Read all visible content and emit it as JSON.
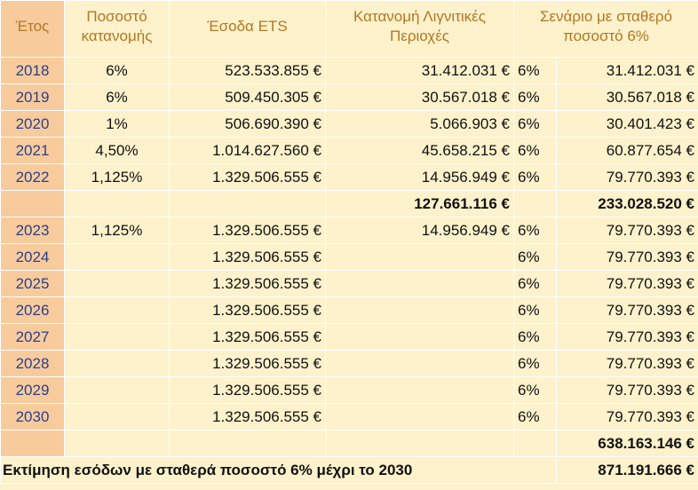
{
  "header": {
    "year": "Έτος",
    "allocation_pct": "Ποσοστό κατανομής",
    "ets_revenue": "Έσοδα ETS",
    "lignite_allocation": "Κατανομή Λιγνιτικές Περιοχές",
    "scenario": "Σενάριο με σταθερό ποσοστό 6%"
  },
  "rows": [
    {
      "year": "2018",
      "pct": "6%",
      "ets": "523.533.855 €",
      "lignite": "31.412.031 €",
      "scen_pct": "6%",
      "scen": "31.412.031 €"
    },
    {
      "year": "2019",
      "pct": "6%",
      "ets": "509.450.305 €",
      "lignite": "30.567.018 €",
      "scen_pct": "6%",
      "scen": "30.567.018 €"
    },
    {
      "year": "2020",
      "pct": "1%",
      "ets": "506.690.390 €",
      "lignite": "5.066.903 €",
      "scen_pct": "6%",
      "scen": "30.401.423 €"
    },
    {
      "year": "2021",
      "pct": "4,50%",
      "ets": "1.014.627.560 €",
      "lignite": "45.658.215 €",
      "scen_pct": "6%",
      "scen": "60.877.654 €"
    },
    {
      "year": "2022",
      "pct": "1,125%",
      "ets": "1.329.506.555 €",
      "lignite": "14.956.949 €",
      "scen_pct": "6%",
      "scen": "79.770.393 €"
    },
    {
      "year": "",
      "pct": "",
      "ets": "",
      "lignite": "127.661.116 €",
      "scen_pct": "",
      "scen": "233.028.520 €",
      "subtotal": true
    },
    {
      "year": "2023",
      "pct": "1,125%",
      "ets": "1.329.506.555 €",
      "lignite": "14.956.949 €",
      "scen_pct": "6%",
      "scen": "79.770.393 €"
    },
    {
      "year": "2024",
      "pct": "",
      "ets": "1.329.506.555 €",
      "lignite": "",
      "scen_pct": "6%",
      "scen": "79.770.393 €"
    },
    {
      "year": "2025",
      "pct": "",
      "ets": "1.329.506.555 €",
      "lignite": "",
      "scen_pct": "6%",
      "scen": "79.770.393 €"
    },
    {
      "year": "2026",
      "pct": "",
      "ets": "1.329.506.555 €",
      "lignite": "",
      "scen_pct": "6%",
      "scen": "79.770.393 €"
    },
    {
      "year": "2027",
      "pct": "",
      "ets": "1.329.506.555 €",
      "lignite": "",
      "scen_pct": "6%",
      "scen": "79.770.393 €"
    },
    {
      "year": "2028",
      "pct": "",
      "ets": "1.329.506.555 €",
      "lignite": "",
      "scen_pct": "6%",
      "scen": "79.770.393 €"
    },
    {
      "year": "2029",
      "pct": "",
      "ets": "1.329.506.555 €",
      "lignite": "",
      "scen_pct": "6%",
      "scen": "79.770.393 €"
    },
    {
      "year": "2030",
      "pct": "",
      "ets": "1.329.506.555 €",
      "lignite": "",
      "scen_pct": "6%",
      "scen": "79.770.393 €"
    },
    {
      "year": "",
      "pct": "",
      "ets": "",
      "lignite": "",
      "scen_pct": "",
      "scen": "638.163.146 €",
      "subtotal": true
    }
  ],
  "footer": {
    "label": "Εκτίμηση εσόδων με  σταθερά ποσοστό  6% μέχρι  το 2030",
    "total": "871.191.666 €"
  },
  "colors": {
    "background": "#fdf2cc",
    "year_fill": "#f8cb9c",
    "header_text": "#b5761f",
    "year_text": "#2b3f8c"
  }
}
